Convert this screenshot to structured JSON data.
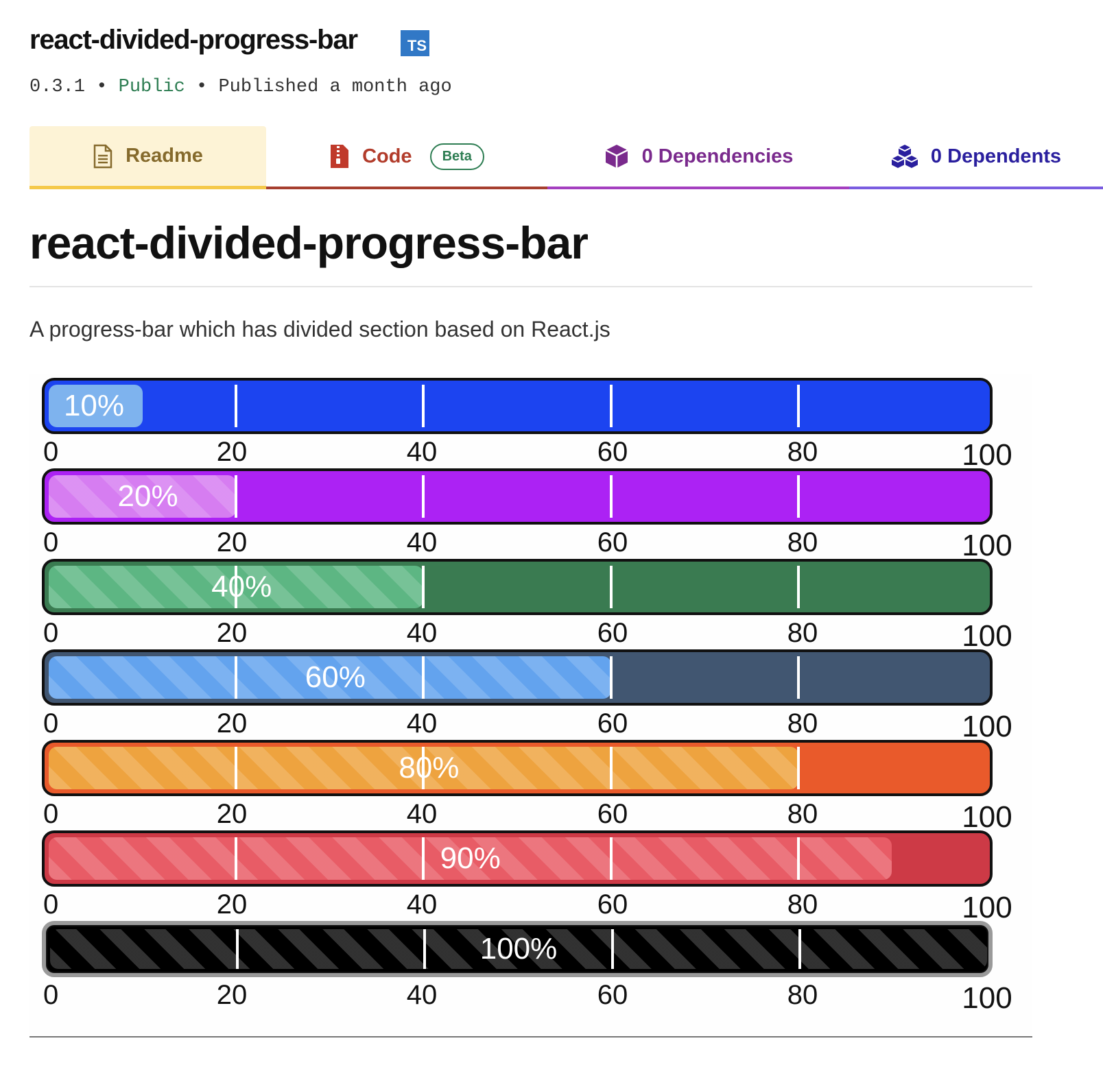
{
  "package": {
    "name": "react-divided-progress-bar",
    "ts_badge": "TS",
    "version": "0.3.1",
    "separator": "•",
    "visibility": "Public",
    "published": "Published a month ago"
  },
  "tabs": {
    "readme": "Readme",
    "code": "Code",
    "code_badge": "Beta",
    "dependencies": "0 Dependencies",
    "dependents": "0 Dependents"
  },
  "readme": {
    "heading": "react-divided-progress-bar",
    "description": "A progress-bar which has divided section based on React.js"
  },
  "demo": {
    "ticks": [
      "0",
      "20",
      "40",
      "60",
      "80",
      "100"
    ],
    "bars": [
      {
        "label": "10%",
        "value": 10,
        "track_color": "#1c44f0",
        "fill_color": "#7eb3ee",
        "striped": false
      },
      {
        "label": "20%",
        "value": 20,
        "track_color": "#ac22f4",
        "fill_color": "#d67df1",
        "striped": true
      },
      {
        "label": "40%",
        "value": 40,
        "track_color": "#3a7b51",
        "fill_color": "#5db683",
        "striped": true
      },
      {
        "label": "60%",
        "value": 60,
        "track_color": "#415671",
        "fill_color": "#63a3ee",
        "striped": true
      },
      {
        "label": "80%",
        "value": 80,
        "track_color": "#e95a2b",
        "fill_color": "#eea33f",
        "striped": true
      },
      {
        "label": "90%",
        "value": 90,
        "track_color": "#cd3a46",
        "fill_color": "#e85c66",
        "striped": true
      },
      {
        "label": "100%",
        "value": 100,
        "track_color": "#000000",
        "fill_color": "#000000",
        "striped": true
      }
    ]
  }
}
